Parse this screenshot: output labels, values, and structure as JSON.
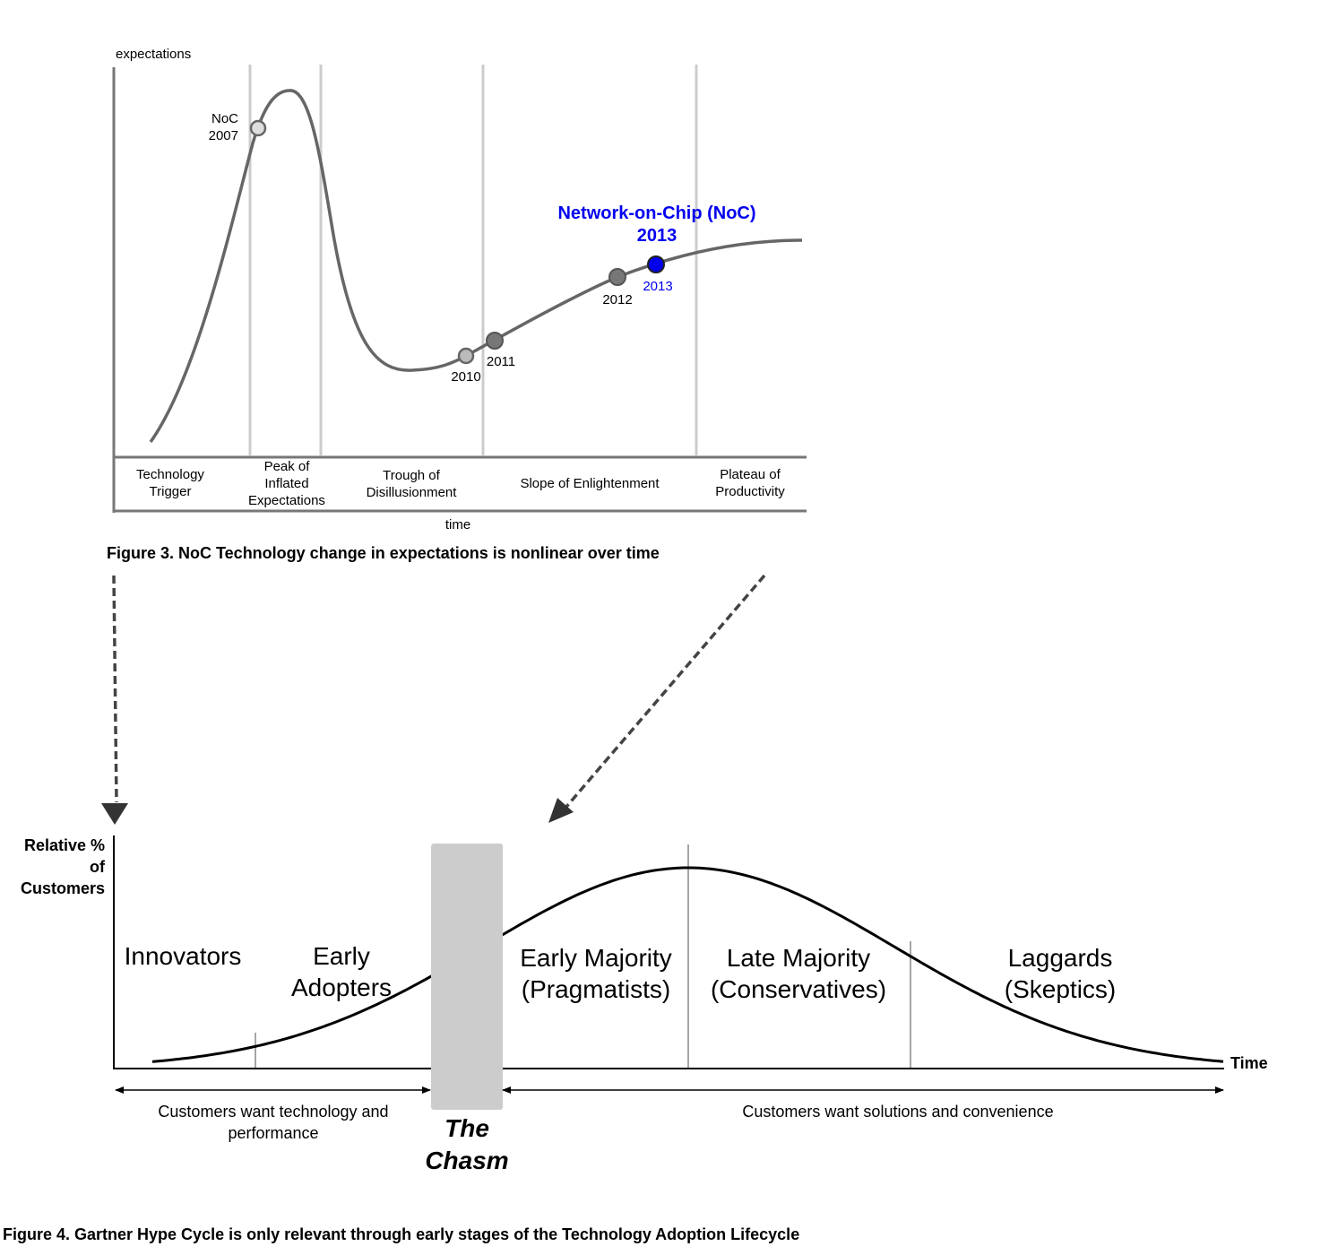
{
  "figure3": {
    "y_axis_label": "expectations",
    "x_axis_label": "time",
    "phases": [
      "Technology Trigger",
      "Peak of Inflated Expectations",
      "Trough of Disillusionment",
      "Slope of Enlightenment",
      "Plateau of Productivity"
    ],
    "points": [
      "NoC 2007",
      "2010",
      "2011",
      "2012",
      "2013"
    ],
    "highlight": {
      "title": "Network-on-Chip (NoC)",
      "year": "2013"
    },
    "caption": "Figure 3. NoC Technology change in expectations is nonlinear over time"
  },
  "figure4": {
    "y_axis_label": "Relative % of Customers",
    "x_axis_label": "Time",
    "segments": [
      "Innovators",
      "Early Adopters",
      "Early Majority (Pragmatists)",
      "Late Majority (Conservatives)",
      "Laggards (Skeptics)"
    ],
    "chasm": "The Chasm",
    "left_note": "Customers want technology and performance",
    "right_note": "Customers want solutions and convenience",
    "caption": "Figure 4. Gartner Hype Cycle is only relevant through early stages of the Technology Adoption Lifecycle"
  }
}
